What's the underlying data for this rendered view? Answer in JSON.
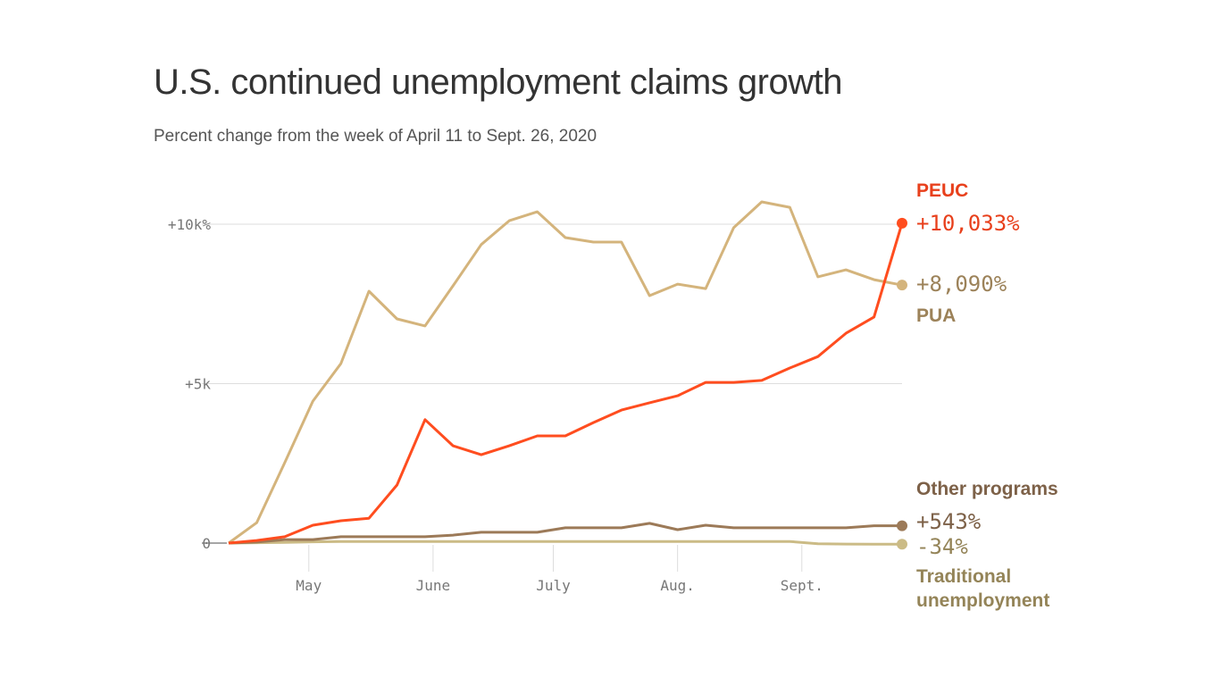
{
  "chart_data": {
    "type": "line",
    "title": "U.S. continued unemployment claims growth",
    "subtitle": "Percent change from the week of April 11 to Sept. 26, 2020",
    "xlabel": "",
    "ylabel": "",
    "x": [
      "2020-04-11",
      "2020-04-18",
      "2020-04-25",
      "2020-05-02",
      "2020-05-09",
      "2020-05-16",
      "2020-05-23",
      "2020-05-30",
      "2020-06-06",
      "2020-06-13",
      "2020-06-20",
      "2020-06-27",
      "2020-07-04",
      "2020-07-11",
      "2020-07-18",
      "2020-07-25",
      "2020-08-01",
      "2020-08-08",
      "2020-08-15",
      "2020-08-22",
      "2020-08-29",
      "2020-09-05",
      "2020-09-12",
      "2020-09-19",
      "2020-09-26"
    ],
    "ylim": [
      -500,
      11000
    ],
    "y_ticks": [
      {
        "value": 0,
        "label": "0"
      },
      {
        "value": 5000,
        "label": "+5k"
      },
      {
        "value": 10000,
        "label": "+10k%"
      }
    ],
    "x_ticks": [
      {
        "date": "2020-05-01",
        "label": "May"
      },
      {
        "date": "2020-06-01",
        "label": "June"
      },
      {
        "date": "2020-07-01",
        "label": "July"
      },
      {
        "date": "2020-08-01",
        "label": "Aug."
      },
      {
        "date": "2020-09-01",
        "label": "Sept."
      }
    ],
    "grid": true,
    "legend": "direct labels at right",
    "series": [
      {
        "name": "PUA",
        "end_label": "+8,090%",
        "color": "#d4b47c",
        "label_color": "#9c8259",
        "values": [
          0,
          640,
          2520,
          4450,
          5630,
          7900,
          7030,
          6810,
          8070,
          9360,
          10110,
          10390,
          9580,
          9440,
          9440,
          7760,
          8120,
          7980,
          9890,
          10700,
          10530,
          8350,
          8570,
          8260,
          8090
        ]
      },
      {
        "name": "PEUC",
        "end_label": "+10,033%",
        "color": "#ff4d1f",
        "label_color": "#e8401c",
        "values": [
          0,
          80,
          200,
          560,
          700,
          780,
          1820,
          3870,
          3050,
          2770,
          3050,
          3360,
          3360,
          3780,
          4170,
          4400,
          4620,
          5040,
          5040,
          5100,
          5490,
          5850,
          6580,
          7090,
          10033
        ]
      },
      {
        "name": "Other programs",
        "end_label": "+543%",
        "color": "#9c7a58",
        "label_color": "#7d6148",
        "values": [
          0,
          30,
          110,
          110,
          200,
          200,
          200,
          200,
          250,
          340,
          340,
          340,
          480,
          480,
          480,
          620,
          420,
          560,
          480,
          480,
          480,
          480,
          480,
          543,
          543
        ]
      },
      {
        "name": "Traditional unemployment",
        "end_label": "-34%",
        "color": "#cbbb86",
        "label_color": "#948458",
        "values": [
          0,
          10,
          20,
          40,
          50,
          50,
          50,
          50,
          50,
          50,
          50,
          50,
          50,
          50,
          50,
          50,
          50,
          50,
          50,
          50,
          50,
          -20,
          -30,
          -34,
          -34
        ]
      }
    ]
  }
}
